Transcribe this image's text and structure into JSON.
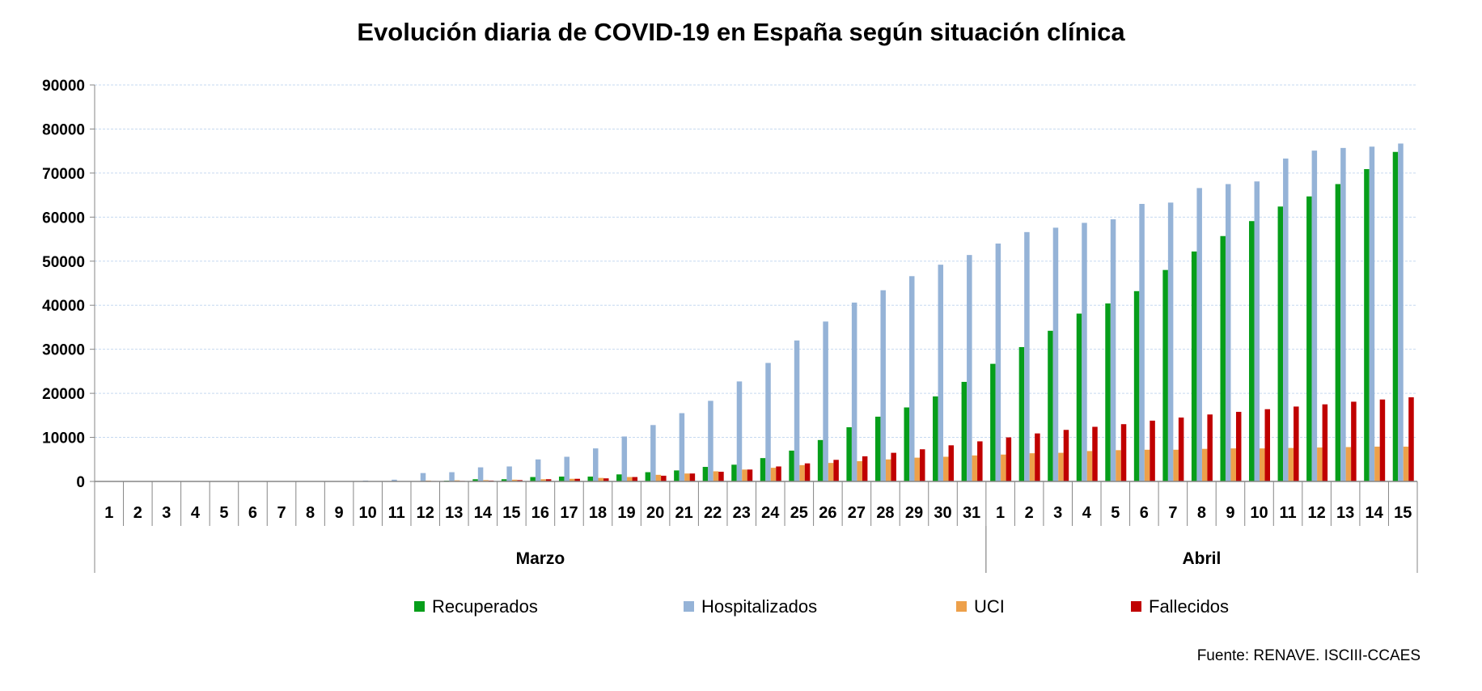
{
  "chart_data": {
    "type": "bar",
    "title": "Evolución diaria de COVID-19 en España según situación clínica",
    "source": "Fuente: RENAVE. ISCIII-CCAES",
    "xlabel": "",
    "ylabel": "",
    "ylim": [
      0,
      90000
    ],
    "yticks": [
      "0",
      "10000",
      "20000",
      "30000",
      "40000",
      "50000",
      "60000",
      "70000",
      "80000",
      "90000"
    ],
    "grid": true,
    "legend_position": "bottom",
    "groups": [
      {
        "label": "Marzo",
        "days": [
          "1",
          "2",
          "3",
          "4",
          "5",
          "6",
          "7",
          "8",
          "9",
          "10",
          "11",
          "12",
          "13",
          "14",
          "15",
          "16",
          "17",
          "18",
          "19",
          "20",
          "21",
          "22",
          "23",
          "24",
          "25",
          "26",
          "27",
          "28",
          "29",
          "30",
          "31"
        ]
      },
      {
        "label": "Abril",
        "days": [
          "1",
          "2",
          "3",
          "4",
          "5",
          "6",
          "7",
          "8",
          "9",
          "10",
          "11",
          "12",
          "13",
          "14",
          "15"
        ]
      }
    ],
    "series": [
      {
        "name": "Recuperados",
        "color": "#069e1a",
        "values": [
          0,
          0,
          0,
          0,
          0,
          0,
          0,
          0,
          0,
          0,
          0,
          0,
          180,
          500,
          500,
          1000,
          1100,
          1100,
          1600,
          2100,
          2500,
          3300,
          3800,
          5300,
          7000,
          9400,
          12300,
          14700,
          16800,
          19300,
          22600,
          26700,
          30500,
          34200,
          38100,
          40400,
          43200,
          48000,
          52200,
          55700,
          59100,
          62400,
          64700,
          67500,
          70900,
          74800
        ]
      },
      {
        "name": "Hospitalizados",
        "color": "#95b3d7",
        "values": [
          0,
          0,
          0,
          0,
          0,
          0,
          0,
          0,
          0,
          200,
          400,
          1900,
          2100,
          3200,
          3400,
          5000,
          5600,
          7500,
          10200,
          12800,
          15500,
          18300,
          22700,
          26900,
          32000,
          36300,
          40600,
          43400,
          46600,
          49200,
          51400,
          54000,
          56600,
          57600,
          58700,
          59500,
          63000,
          63300,
          66600,
          67500,
          68100,
          73300,
          75100,
          75700,
          76000,
          76700
        ]
      },
      {
        "name": "UCI",
        "color": "#eda04a",
        "values": [
          0,
          0,
          0,
          0,
          0,
          0,
          0,
          0,
          0,
          50,
          80,
          200,
          250,
          300,
          400,
          500,
          600,
          800,
          1000,
          1500,
          1800,
          2300,
          2700,
          3100,
          3700,
          4200,
          4600,
          5000,
          5400,
          5600,
          5900,
          6100,
          6400,
          6500,
          6900,
          7100,
          7200,
          7200,
          7400,
          7500,
          7500,
          7600,
          7700,
          7800,
          7900,
          7900
        ]
      },
      {
        "name": "Fallecidos",
        "color": "#c00000",
        "values": [
          0,
          0,
          0,
          0,
          0,
          0,
          0,
          0,
          0,
          30,
          50,
          100,
          120,
          200,
          300,
          500,
          600,
          700,
          1000,
          1300,
          1800,
          2200,
          2700,
          3400,
          4100,
          4900,
          5700,
          6500,
          7300,
          8200,
          9100,
          10000,
          10900,
          11700,
          12400,
          13000,
          13800,
          14500,
          15200,
          15800,
          16400,
          17000,
          17500,
          18100,
          18600,
          19100
        ]
      }
    ]
  }
}
